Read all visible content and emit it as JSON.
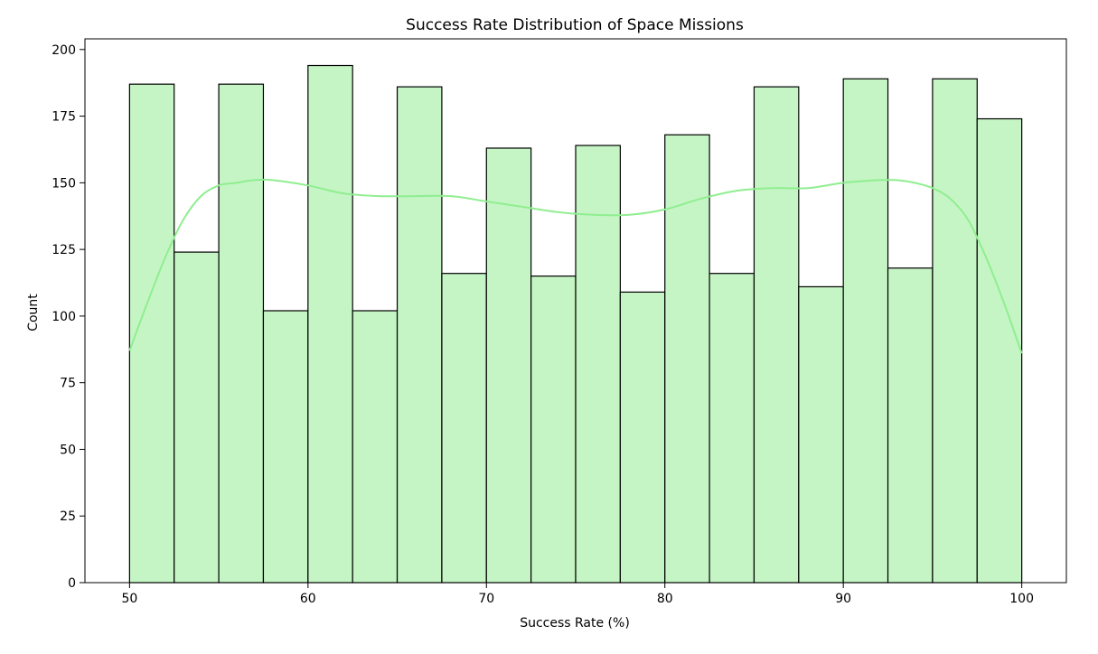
{
  "chart_data": {
    "type": "bar",
    "title": "Success Rate Distribution of Space Missions",
    "xlabel": "Success Rate (%)",
    "ylabel": "Count",
    "xlim": [
      47.5,
      102.5
    ],
    "ylim": [
      0,
      204
    ],
    "x_ticks": [
      50,
      60,
      70,
      80,
      90,
      100
    ],
    "y_ticks": [
      0,
      25,
      50,
      75,
      100,
      125,
      150,
      175,
      200
    ],
    "grid": false,
    "legend": "none",
    "bins": [
      {
        "start": 50.0,
        "end": 52.5,
        "count": 187
      },
      {
        "start": 52.5,
        "end": 55.0,
        "count": 124
      },
      {
        "start": 55.0,
        "end": 57.5,
        "count": 187
      },
      {
        "start": 57.5,
        "end": 60.0,
        "count": 102
      },
      {
        "start": 60.0,
        "end": 62.5,
        "count": 194
      },
      {
        "start": 62.5,
        "end": 65.0,
        "count": 102
      },
      {
        "start": 65.0,
        "end": 67.5,
        "count": 186
      },
      {
        "start": 67.5,
        "end": 70.0,
        "count": 116
      },
      {
        "start": 70.0,
        "end": 72.5,
        "count": 163
      },
      {
        "start": 72.5,
        "end": 75.0,
        "count": 115
      },
      {
        "start": 75.0,
        "end": 77.5,
        "count": 164
      },
      {
        "start": 77.5,
        "end": 80.0,
        "count": 109
      },
      {
        "start": 80.0,
        "end": 82.5,
        "count": 168
      },
      {
        "start": 82.5,
        "end": 85.0,
        "count": 116
      },
      {
        "start": 85.0,
        "end": 87.5,
        "count": 186
      },
      {
        "start": 87.5,
        "end": 90.0,
        "count": 111
      },
      {
        "start": 90.0,
        "end": 92.5,
        "count": 189
      },
      {
        "start": 92.5,
        "end": 95.0,
        "count": 118
      },
      {
        "start": 95.0,
        "end": 97.5,
        "count": 189
      },
      {
        "start": 97.5,
        "end": 100.0,
        "count": 174
      }
    ],
    "kde_curve": {
      "x": [
        50,
        51,
        52,
        53,
        54,
        55,
        56,
        57,
        58,
        60,
        62,
        64,
        66,
        68,
        70,
        72,
        74,
        76,
        78,
        80,
        82,
        84,
        86,
        88,
        90,
        92,
        93,
        94,
        95,
        96,
        97,
        98,
        99,
        100
      ],
      "y": [
        87,
        105,
        122,
        136,
        145,
        149,
        150,
        151,
        151,
        149,
        146,
        145,
        145,
        145,
        143,
        141,
        139,
        138,
        138,
        140,
        144,
        147,
        148,
        148,
        150,
        151,
        151,
        150,
        148,
        144,
        136,
        122,
        105,
        86
      ]
    },
    "colors": {
      "bar_fill": "#c5f5c5",
      "bar_edge": "#000000",
      "kde_line": "#90ee90"
    }
  }
}
